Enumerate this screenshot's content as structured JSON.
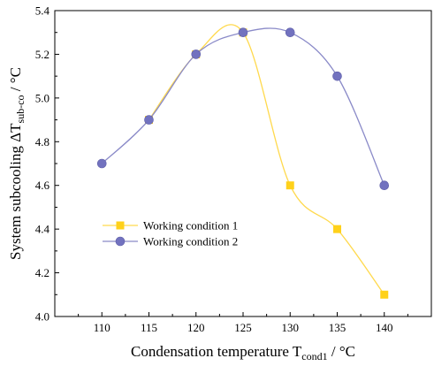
{
  "chart_data": {
    "type": "line",
    "title": "",
    "xlabel": {
      "main": "Condensation temperature T",
      "sub": "cond1",
      "unit": " / °C"
    },
    "ylabel": {
      "main": "System subcooling ΔT",
      "sub": "sub-co",
      "unit": " / °C"
    },
    "x": [
      110,
      115,
      120,
      125,
      130,
      135,
      140
    ],
    "xlim": [
      105,
      145
    ],
    "ylim": [
      4.0,
      5.4
    ],
    "xticks": [
      "110",
      "115",
      "120",
      "125",
      "130",
      "135",
      "140"
    ],
    "yticks": [
      "4.0",
      "4.2",
      "4.4",
      "4.6",
      "4.8",
      "5.0",
      "5.2",
      "5.4"
    ],
    "grid": false,
    "legend_position": "lower-left",
    "series": [
      {
        "name": "Working condition 1",
        "marker": "square",
        "color": "#FFD11A",
        "line_color": "#FFD94D",
        "x": [
          115,
          120,
          125,
          130,
          135,
          140
        ],
        "values": [
          4.9,
          5.2,
          5.3,
          4.6,
          4.4,
          4.1
        ]
      },
      {
        "name": "Working condition 2",
        "marker": "circle",
        "color": "#7272BF",
        "line_color": "#8A8AC8",
        "x": [
          110,
          115,
          120,
          125,
          130,
          135,
          140
        ],
        "values": [
          4.7,
          4.9,
          5.2,
          5.3,
          5.3,
          5.1,
          4.6
        ]
      }
    ]
  }
}
